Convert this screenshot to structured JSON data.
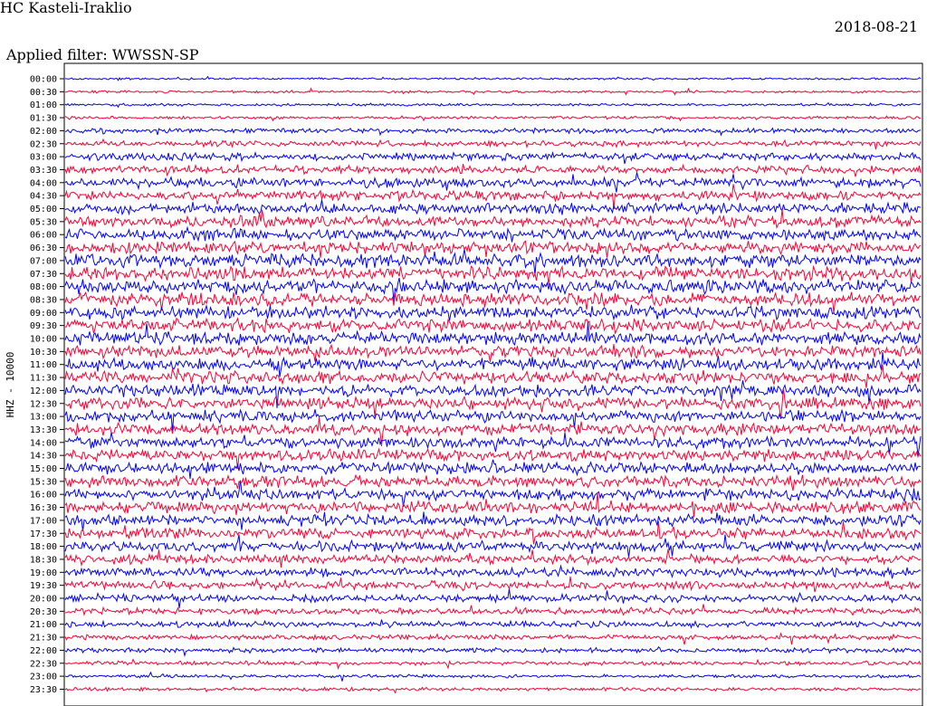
{
  "header": {
    "station": "HC Kasteli-Iraklio",
    "date": "2018-08-21",
    "filter_text": "Applied filter: WWSSN-SP"
  },
  "chart_data": {
    "type": "line",
    "title": "HC Kasteli-Iraklio",
    "subtitle": "Applied filter: WWSSN-SP",
    "ylabel": "HHZ - 10000",
    "xlabel": "",
    "grid": false,
    "legend": "none",
    "trace_colors": [
      "#0000ff",
      "#ff0033"
    ],
    "y_ticks": [
      "00:00",
      "00:30",
      "01:00",
      "01:30",
      "02:00",
      "02:30",
      "03:00",
      "03:30",
      "04:00",
      "04:30",
      "05:00",
      "05:30",
      "06:00",
      "06:30",
      "07:00",
      "07:30",
      "08:00",
      "08:30",
      "09:00",
      "09:30",
      "10:00",
      "10:30",
      "11:00",
      "11:30",
      "12:00",
      "12:30",
      "13:00",
      "13:30",
      "14:00",
      "14:30",
      "15:00",
      "15:30",
      "16:00",
      "16:30",
      "17:00",
      "17:30",
      "18:00",
      "18:30",
      "19:00",
      "19:30",
      "20:00",
      "20:30",
      "21:00",
      "21:30",
      "22:00",
      "22:30",
      "23:00",
      "23:30"
    ],
    "trace_amplitude_level": [
      0.15,
      0.18,
      0.2,
      0.22,
      0.35,
      0.45,
      0.55,
      0.6,
      0.7,
      0.75,
      0.8,
      0.85,
      0.85,
      0.9,
      1.0,
      1.0,
      1.0,
      1.0,
      1.0,
      0.95,
      0.95,
      0.9,
      0.9,
      0.9,
      0.9,
      0.9,
      0.85,
      0.85,
      0.85,
      0.85,
      0.85,
      0.85,
      0.85,
      0.85,
      0.85,
      0.8,
      0.75,
      0.7,
      0.65,
      0.6,
      0.55,
      0.5,
      0.45,
      0.4,
      0.35,
      0.3,
      0.25,
      0.25
    ]
  }
}
